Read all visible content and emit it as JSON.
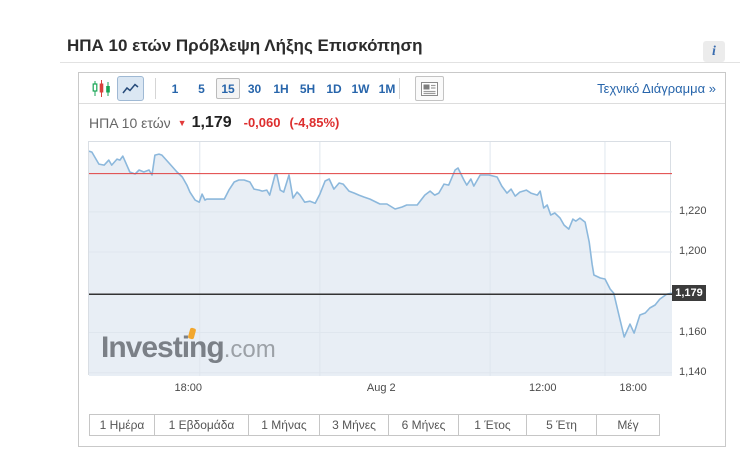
{
  "page": {
    "title": "ΗΠΑ 10 ετών Πρόβλεψη Λήξης Επισκόπηση",
    "info_icon": "i"
  },
  "toolbar": {
    "candlestick_icon": "candlestick-chart",
    "line_icon": "line-chart",
    "news_icon": "news-panel",
    "intervals": [
      {
        "label": "1",
        "selected": false
      },
      {
        "label": "5",
        "selected": false
      },
      {
        "label": "15",
        "selected": true
      },
      {
        "label": "30",
        "selected": false
      },
      {
        "label": "1H",
        "selected": false
      },
      {
        "label": "5H",
        "selected": false
      },
      {
        "label": "1D",
        "selected": false
      },
      {
        "label": "1W",
        "selected": false
      },
      {
        "label": "1M",
        "selected": false
      }
    ],
    "link_label": "Τεχνικό Διάγραμμα »"
  },
  "instrument": {
    "name": "ΗΠΑ 10 ετών",
    "arrow": "▼",
    "price": "1,179",
    "change": "-0,060",
    "change_pct": "(-4,85%)"
  },
  "watermark": {
    "main": "Investing",
    "suffix": ".com"
  },
  "range_buttons": [
    "1 Ημέρα",
    "1 Εβδομάδα",
    "1 Μήνας",
    "3 Μήνες",
    "6 Μήνες",
    "1 Έτος",
    "5 Έτη",
    "Μέγ"
  ],
  "chart_data": {
    "type": "area",
    "title": "ΗΠΑ 10 ετών 15-minute yield chart",
    "ylim": [
      1.1384,
      1.2547
    ],
    "y_ticks": [
      {
        "value": 1.22,
        "label": "1,220"
      },
      {
        "value": 1.2,
        "label": "1,200"
      },
      {
        "value": 1.16,
        "label": "1,160"
      },
      {
        "value": 1.14,
        "label": "1,140"
      }
    ],
    "x_ticks": [
      {
        "pos": 0.172,
        "label": "18:00"
      },
      {
        "pos": 0.503,
        "label": "Aug 2"
      },
      {
        "pos": 0.78,
        "label": "12:00"
      },
      {
        "pos": 0.935,
        "label": "18:00"
      }
    ],
    "v_gridlines": [
      0.19,
      0.396,
      0.688,
      0.885
    ],
    "previous_close": 1.239,
    "last_price": 1.179,
    "last_price_label": "1,179",
    "colors": {
      "line": "#8cb8dc",
      "fill": "#e8eef5",
      "grid": "#dfe6ee",
      "prev_close_line": "#e04040",
      "last_price_line": "#333333"
    },
    "series": [
      {
        "name": "ΗΠΑ 10 ετών",
        "points": [
          [
            0,
            1.2502
          ],
          [
            0.005,
            1.2497
          ],
          [
            0.017,
            1.2437
          ],
          [
            0.026,
            1.2432
          ],
          [
            0.034,
            1.2457
          ],
          [
            0.039,
            1.2432
          ],
          [
            0.048,
            1.2462
          ],
          [
            0.053,
            1.2457
          ],
          [
            0.058,
            1.2477
          ],
          [
            0.07,
            1.2398
          ],
          [
            0.079,
            1.2388
          ],
          [
            0.086,
            1.2408
          ],
          [
            0.094,
            1.2398
          ],
          [
            0.103,
            1.2408
          ],
          [
            0.108,
            1.2383
          ],
          [
            0.113,
            1.2482
          ],
          [
            0.12,
            1.2487
          ],
          [
            0.125,
            1.2482
          ],
          [
            0.139,
            1.2437
          ],
          [
            0.151,
            1.2398
          ],
          [
            0.16,
            1.2373
          ],
          [
            0.168,
            1.2333
          ],
          [
            0.173,
            1.2298
          ],
          [
            0.182,
            1.2258
          ],
          [
            0.189,
            1.2248
          ],
          [
            0.194,
            1.2288
          ],
          [
            0.199,
            1.2258
          ],
          [
            0.202,
            1.2263
          ],
          [
            0.214,
            1.2263
          ],
          [
            0.232,
            1.2263
          ],
          [
            0.24,
            1.2308
          ],
          [
            0.249,
            1.2348
          ],
          [
            0.257,
            1.2358
          ],
          [
            0.266,
            1.2358
          ],
          [
            0.271,
            1.2353
          ],
          [
            0.276,
            1.2348
          ],
          [
            0.283,
            1.2313
          ],
          [
            0.292,
            1.2308
          ],
          [
            0.297,
            1.2303
          ],
          [
            0.305,
            1.2308
          ],
          [
            0.31,
            1.2283
          ],
          [
            0.319,
            1.2383
          ],
          [
            0.322,
            1.2388
          ],
          [
            0.328,
            1.2308
          ],
          [
            0.334,
            1.2298
          ],
          [
            0.343,
            1.2383
          ],
          [
            0.35,
            1.2268
          ],
          [
            0.357,
            1.2298
          ],
          [
            0.362,
            1.2283
          ],
          [
            0.37,
            1.2248
          ],
          [
            0.379,
            1.2253
          ],
          [
            0.388,
            1.2243
          ],
          [
            0.396,
            1.2288
          ],
          [
            0.405,
            1.2353
          ],
          [
            0.412,
            1.2363
          ],
          [
            0.42,
            1.2313
          ],
          [
            0.429,
            1.2343
          ],
          [
            0.436,
            1.2338
          ],
          [
            0.446,
            1.2303
          ],
          [
            0.455,
            1.2293
          ],
          [
            0.463,
            1.2283
          ],
          [
            0.472,
            1.2273
          ],
          [
            0.482,
            1.2263
          ],
          [
            0.499,
            1.2239
          ],
          [
            0.511,
            1.2239
          ],
          [
            0.525,
            1.2214
          ],
          [
            0.537,
            1.2224
          ],
          [
            0.545,
            1.2234
          ],
          [
            0.563,
            1.2234
          ],
          [
            0.576,
            1.2283
          ],
          [
            0.585,
            1.2303
          ],
          [
            0.593,
            1.2283
          ],
          [
            0.6,
            1.2293
          ],
          [
            0.609,
            1.2338
          ],
          [
            0.617,
            1.2333
          ],
          [
            0.628,
            1.2408
          ],
          [
            0.633,
            1.2418
          ],
          [
            0.643,
            1.2358
          ],
          [
            0.648,
            1.2333
          ],
          [
            0.655,
            1.2363
          ],
          [
            0.66,
            1.2328
          ],
          [
            0.671,
            1.2383
          ],
          [
            0.679,
            1.2383
          ],
          [
            0.686,
            1.2383
          ],
          [
            0.7,
            1.2373
          ],
          [
            0.708,
            1.2328
          ],
          [
            0.717,
            1.2293
          ],
          [
            0.724,
            1.2313
          ],
          [
            0.731,
            1.2278
          ],
          [
            0.739,
            1.2298
          ],
          [
            0.75,
            1.2308
          ],
          [
            0.758,
            1.2293
          ],
          [
            0.769,
            1.2283
          ],
          [
            0.774,
            1.2303
          ],
          [
            0.78,
            1.2219
          ],
          [
            0.786,
            1.2234
          ],
          [
            0.792,
            1.2184
          ],
          [
            0.799,
            1.2194
          ],
          [
            0.808,
            1.2169
          ],
          [
            0.815,
            1.2134
          ],
          [
            0.823,
            1.2114
          ],
          [
            0.83,
            1.2164
          ],
          [
            0.835,
            1.2154
          ],
          [
            0.842,
            1.2169
          ],
          [
            0.851,
            1.2149
          ],
          [
            0.858,
            1.205
          ],
          [
            0.863,
            1.194
          ],
          [
            0.866,
            1.1886
          ],
          [
            0.877,
            1.1871
          ],
          [
            0.885,
            1.1866
          ],
          [
            0.894,
            1.1816
          ],
          [
            0.9,
            1.1796
          ],
          [
            0.909,
            1.1687
          ],
          [
            0.918,
            1.1578
          ],
          [
            0.928,
            1.1642
          ],
          [
            0.935,
            1.1597
          ],
          [
            0.945,
            1.1687
          ],
          [
            0.954,
            1.1697
          ],
          [
            0.962,
            1.1722
          ],
          [
            0.971,
            1.1737
          ],
          [
            0.979,
            1.1766
          ],
          [
            0.991,
            1.1791
          ],
          [
            1,
            1.1796
          ]
        ]
      }
    ]
  }
}
